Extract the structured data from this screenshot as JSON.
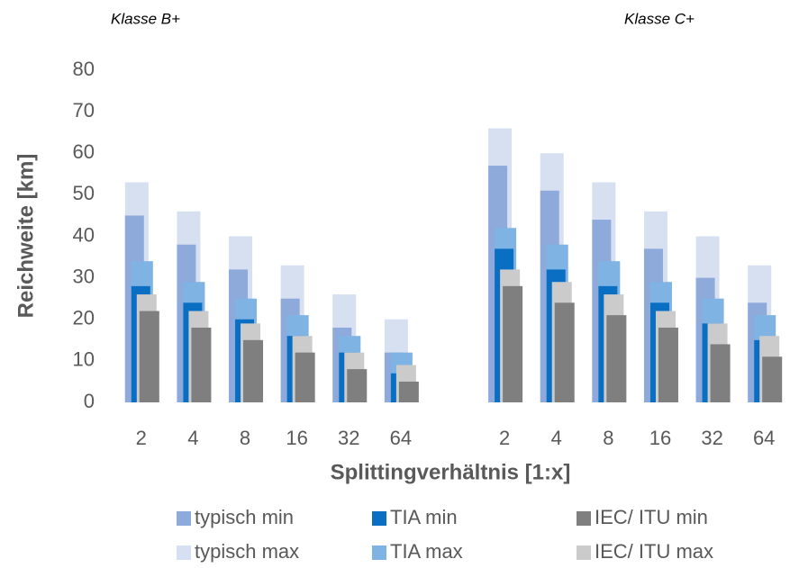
{
  "chart_data": {
    "type": "bar",
    "annotations": [
      "Klasse B+",
      "Klasse C+"
    ],
    "x_label": "Splittingverhältnis [1:x]",
    "y_label": "Reichweite [km]",
    "categories": [
      "2",
      "4",
      "8",
      "16",
      "32",
      "64",
      null,
      "2",
      "4",
      "8",
      "16",
      "32",
      "64"
    ],
    "series": [
      {
        "name": "typisch min",
        "color": "#8eaadb",
        "values": [
          45,
          38,
          32,
          25,
          18,
          12,
          null,
          57,
          51,
          44,
          37,
          30,
          24
        ]
      },
      {
        "name": "TIA min",
        "color": "#0a6fc2",
        "values": [
          28,
          24,
          20,
          16,
          12,
          7,
          null,
          37,
          32,
          28,
          24,
          19,
          15
        ]
      },
      {
        "name": "IEC/ ITU min",
        "color": "#7f7f7f",
        "values": [
          22,
          18,
          15,
          12,
          8,
          5,
          null,
          28,
          24,
          21,
          18,
          14,
          11
        ]
      },
      {
        "name": "typisch max",
        "color": "#d6e0f1",
        "values": [
          53,
          46,
          40,
          33,
          26,
          20,
          null,
          66,
          60,
          53,
          46,
          40,
          33
        ]
      },
      {
        "name": "TIA max",
        "color": "#7fb3e3",
        "values": [
          34,
          29,
          25,
          21,
          16,
          12,
          null,
          42,
          38,
          34,
          29,
          25,
          21
        ]
      },
      {
        "name": "IEC/ ITU max",
        "color": "#cbcbcb",
        "values": [
          26,
          22,
          19,
          16,
          12,
          9,
          null,
          32,
          29,
          26,
          22,
          19,
          16
        ]
      }
    ],
    "ylim": [
      0,
      80
    ],
    "yticks": [
      0,
      10,
      20,
      30,
      40,
      50,
      60,
      70,
      80
    ],
    "grid": false
  }
}
